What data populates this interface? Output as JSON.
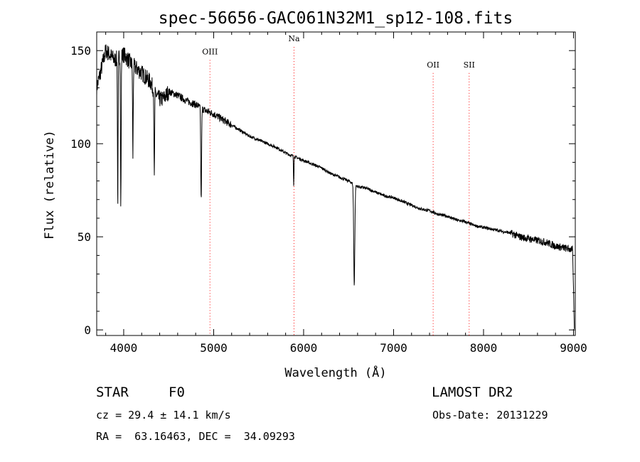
{
  "chart_data": {
    "type": "line",
    "title": "spec-56656-GAC061N32M1_sp12-108.fits",
    "xlabel": "Wavelength (Å)",
    "ylabel": "Flux (relative)",
    "xlim": [
      3700,
      9020
    ],
    "ylim": [
      -3,
      160
    ],
    "x_ticks": [
      4000,
      5000,
      6000,
      7000,
      8000,
      9000
    ],
    "y_ticks": [
      0,
      50,
      100,
      150
    ],
    "grid": false,
    "line_color": "#000000",
    "marker_color": "#ff0000",
    "continuum": [
      [
        3700,
        130
      ],
      [
        3800,
        150
      ],
      [
        3900,
        145
      ],
      [
        4000,
        148
      ],
      [
        4100,
        142
      ],
      [
        4200,
        138
      ],
      [
        4300,
        133
      ],
      [
        4400,
        130
      ],
      [
        4500,
        128
      ],
      [
        4600,
        126
      ],
      [
        4700,
        123
      ],
      [
        4800,
        121
      ],
      [
        4900,
        118
      ],
      [
        5000,
        116
      ],
      [
        5100,
        113
      ],
      [
        5200,
        110
      ],
      [
        5300,
        107
      ],
      [
        5400,
        104
      ],
      [
        5500,
        102
      ],
      [
        5600,
        100
      ],
      [
        5700,
        98
      ],
      [
        5800,
        95
      ],
      [
        5900,
        93
      ],
      [
        6000,
        91
      ],
      [
        6100,
        89
      ],
      [
        6200,
        87
      ],
      [
        6300,
        84
      ],
      [
        6400,
        82
      ],
      [
        6500,
        80
      ],
      [
        6600,
        77
      ],
      [
        6700,
        76
      ],
      [
        6800,
        74
      ],
      [
        6900,
        72
      ],
      [
        7000,
        71
      ],
      [
        7100,
        69
      ],
      [
        7200,
        67
      ],
      [
        7300,
        65
      ],
      [
        7400,
        64
      ],
      [
        7500,
        62
      ],
      [
        7600,
        61
      ],
      [
        7700,
        59
      ],
      [
        7800,
        58
      ],
      [
        7900,
        56
      ],
      [
        8000,
        55
      ],
      [
        8100,
        54
      ],
      [
        8200,
        53
      ],
      [
        8300,
        52
      ],
      [
        8400,
        50
      ],
      [
        8500,
        49
      ],
      [
        8600,
        48
      ],
      [
        8700,
        47
      ],
      [
        8800,
        45
      ],
      [
        8900,
        44
      ],
      [
        8990,
        43
      ],
      [
        9000,
        22
      ],
      [
        9010,
        0
      ]
    ],
    "absorption_lines": [
      {
        "x": 3934,
        "y": 68,
        "w": 8
      },
      {
        "x": 3968,
        "y": 68,
        "w": 8
      },
      {
        "x": 4102,
        "y": 93,
        "w": 8
      },
      {
        "x": 4340,
        "y": 84,
        "w": 8
      },
      {
        "x": 4861,
        "y": 70,
        "w": 10
      },
      {
        "x": 5890,
        "y": 78,
        "w": 6
      },
      {
        "x": 6563,
        "y": 24,
        "w": 14
      }
    ],
    "line_markers": [
      {
        "label": "OIII",
        "x": 4959,
        "label_y": 148
      },
      {
        "label": "Na",
        "x": 5893,
        "label_y": 155
      },
      {
        "label": "OII",
        "x": 7440,
        "label_y": 141
      },
      {
        "label": "SII",
        "x": 7840,
        "label_y": 141
      }
    ]
  },
  "info": {
    "class_label": "STAR",
    "subclass_label": "F0",
    "survey": "LAMOST DR2",
    "cz": "cz = 29.4 ± 14.1 km/s",
    "obs_date": "Obs-Date: 20131229",
    "coords": "RA =  63.16463, DEC =  34.09293"
  }
}
